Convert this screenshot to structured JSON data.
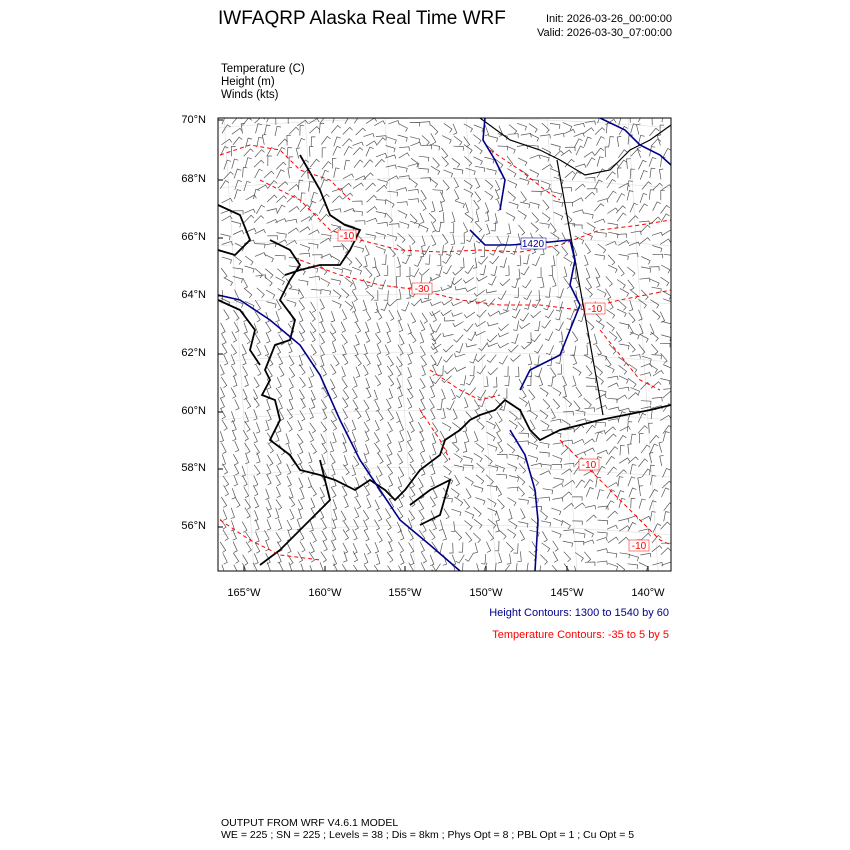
{
  "title": "IWFAQRP Alaska Real Time WRF",
  "init": "Init: 2026-03-26_00:00:00",
  "valid": "Valid: 2026-03-30_07:00:00",
  "fields": [
    "Temperature   (C)",
    "Height   (m)",
    "Winds   (kts)"
  ],
  "lat_labels": [
    "70°N",
    "68°N",
    "66°N",
    "64°N",
    "62°N",
    "60°N",
    "58°N",
    "56°N"
  ],
  "lon_labels": [
    "165°W",
    "160°W",
    "155°W",
    "150°W",
    "145°W",
    "140°W"
  ],
  "contour_labels": {
    "height": [
      "1420"
    ],
    "temperature": [
      "-10",
      "-30",
      "-10",
      "-10",
      "-10"
    ]
  },
  "height_contours": "Height Contours: 1300 to 1540 by 60",
  "temperature_contours": "Temperature Contours: -35 to 5 by 5",
  "footer": [
    "OUTPUT FROM WRF V4.6.1 MODEL",
    "WE = 225 ; SN = 225 ; Levels = 38 ; Dis = 8km ; Phys Opt = 8 ; PBL Opt = 1 ; Cu Opt = 5"
  ],
  "colors": {
    "height": "#00008b",
    "temperature": "#ff0000",
    "coast": "#000000",
    "barbs": "#555555"
  }
}
